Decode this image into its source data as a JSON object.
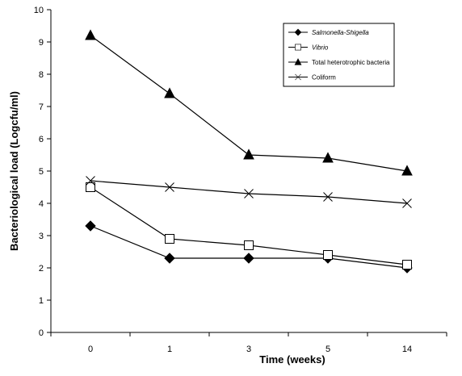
{
  "chart_data": {
    "type": "line",
    "title": "",
    "xlabel": "Time (weeks)",
    "ylabel": "Bacteriological load (Logcfu/ml)",
    "categories": [
      "0",
      "1",
      "3",
      "5",
      "14"
    ],
    "ylim": [
      0,
      10
    ],
    "yticks": [
      "0",
      "1",
      "2",
      "3",
      "4",
      "5",
      "6",
      "7",
      "8",
      "9",
      "10"
    ],
    "grid": false,
    "legend_position": "top-right",
    "series": [
      {
        "name": "Salmonella-Shigella",
        "marker": "diamond",
        "values": [
          3.3,
          2.3,
          2.3,
          2.3,
          2.0
        ]
      },
      {
        "name": "Vibrio",
        "marker": "square-open",
        "values": [
          4.5,
          2.9,
          2.7,
          2.4,
          2.1
        ]
      },
      {
        "name": "Total heterotrophic bacteria",
        "marker": "triangle",
        "values": [
          9.2,
          7.4,
          5.5,
          5.4,
          5.0
        ]
      },
      {
        "name": "Coliform",
        "marker": "x",
        "values": [
          4.7,
          4.5,
          4.3,
          4.2,
          4.0
        ]
      }
    ]
  }
}
